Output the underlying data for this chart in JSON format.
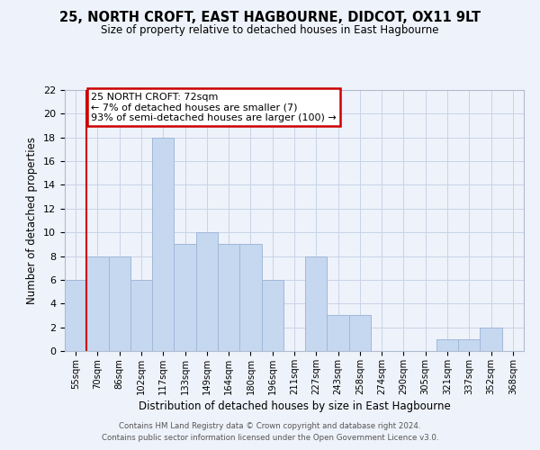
{
  "title": "25, NORTH CROFT, EAST HAGBOURNE, DIDCOT, OX11 9LT",
  "subtitle": "Size of property relative to detached houses in East Hagbourne",
  "xlabel": "Distribution of detached houses by size in East Hagbourne",
  "ylabel": "Number of detached properties",
  "bin_labels": [
    "55sqm",
    "70sqm",
    "86sqm",
    "102sqm",
    "117sqm",
    "133sqm",
    "149sqm",
    "164sqm",
    "180sqm",
    "196sqm",
    "211sqm",
    "227sqm",
    "243sqm",
    "258sqm",
    "274sqm",
    "290sqm",
    "305sqm",
    "321sqm",
    "337sqm",
    "352sqm",
    "368sqm"
  ],
  "bar_heights": [
    6,
    8,
    8,
    6,
    18,
    9,
    10,
    9,
    9,
    6,
    0,
    8,
    3,
    3,
    0,
    0,
    0,
    1,
    1,
    2,
    0
  ],
  "bar_color": "#c5d8f0",
  "bar_edge_color": "#a0b8d8",
  "property_line_color": "#cc0000",
  "annotation_title": "25 NORTH CROFT: 72sqm",
  "annotation_line1": "← 7% of detached houses are smaller (7)",
  "annotation_line2": "93% of semi-detached houses are larger (100) →",
  "annotation_box_color": "#cc0000",
  "ylim": [
    0,
    22
  ],
  "yticks": [
    0,
    2,
    4,
    6,
    8,
    10,
    12,
    14,
    16,
    18,
    20,
    22
  ],
  "footer1": "Contains HM Land Registry data © Crown copyright and database right 2024.",
  "footer2": "Contains public sector information licensed under the Open Government Licence v3.0.",
  "bg_color": "#eef2fa",
  "grid_color": "#c8d4e8"
}
